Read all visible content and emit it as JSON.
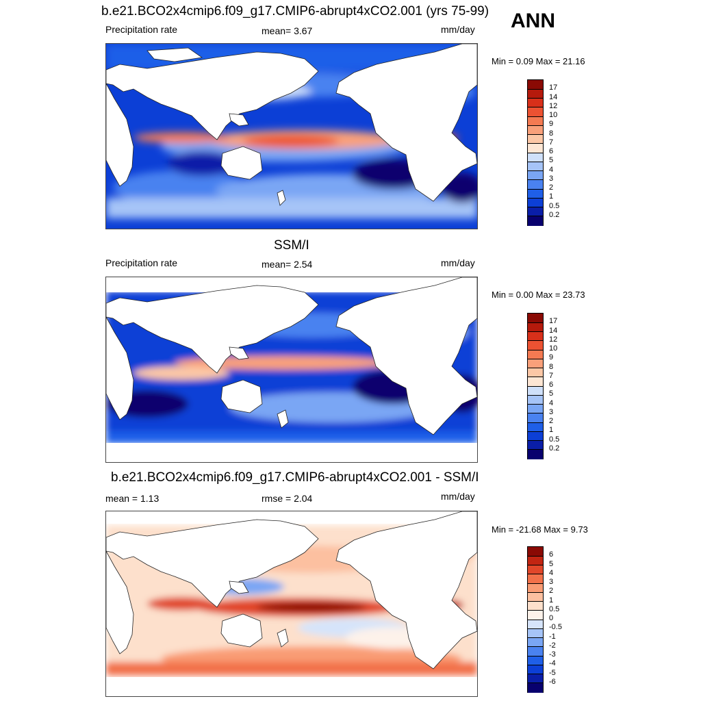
{
  "page": {
    "ann_label": "ANN"
  },
  "panels": [
    {
      "title": "b.e21.BCO2x4cmip6.f09_g17.CMIP6-abrupt4xCO2.001 (yrs 75-99)",
      "left_label": "Precipitation rate",
      "center_label": "mean=   3.67",
      "units": "mm/day",
      "minmax": "Min =   0.09 Max =  21.16"
    },
    {
      "title": "SSM/I",
      "left_label": "Precipitation rate",
      "center_label": "mean=   2.54",
      "units": "mm/day",
      "minmax": "Min =   0.00 Max =  23.73"
    },
    {
      "title": "b.e21.BCO2x4cmip6.f09_g17.CMIP6-abrupt4xCO2.001 - SSM/I",
      "left_label": "mean =   1.13",
      "center_label": "rmse =   2.04",
      "units": "mm/day",
      "minmax": "Min = -21.68 Max =   9.73"
    }
  ],
  "chart_data": [
    {
      "type": "heatmap",
      "title": "b.e21.BCO2x4cmip6.f09_g17.CMIP6-abrupt4xCO2.001 (yrs 75-99)",
      "variable": "Precipitation rate",
      "units": "mm/day",
      "mean": 3.67,
      "min": 0.09,
      "max": 21.16,
      "colorbar_levels": [
        "0.2",
        "0.5",
        "1",
        "2",
        "3",
        "4",
        "5",
        "6",
        "7",
        "8",
        "9",
        "10",
        "12",
        "14",
        "17"
      ],
      "colorbar_colors": [
        "#08006e",
        "#0a1ea8",
        "#0c3fd6",
        "#1f5fe8",
        "#4a82f0",
        "#7aa6f4",
        "#a6c4f7",
        "#cfe0fa",
        "#fde6d4",
        "#fcc7a6",
        "#f9a07a",
        "#f47a52",
        "#ec5232",
        "#d8301a",
        "#b51a0c",
        "#8a0a04"
      ]
    },
    {
      "type": "heatmap",
      "title": "SSM/I",
      "variable": "Precipitation rate",
      "units": "mm/day",
      "mean": 2.54,
      "min": 0.0,
      "max": 23.73,
      "colorbar_levels": [
        "0.2",
        "0.5",
        "1",
        "2",
        "3",
        "4",
        "5",
        "6",
        "7",
        "8",
        "9",
        "10",
        "12",
        "14",
        "17"
      ],
      "colorbar_colors": [
        "#08006e",
        "#0a1ea8",
        "#0c3fd6",
        "#1f5fe8",
        "#4a82f0",
        "#7aa6f4",
        "#a6c4f7",
        "#cfe0fa",
        "#fde6d4",
        "#fcc7a6",
        "#f9a07a",
        "#f47a52",
        "#ec5232",
        "#d8301a",
        "#b51a0c",
        "#8a0a04"
      ]
    },
    {
      "type": "heatmap",
      "title": "b.e21.BCO2x4cmip6.f09_g17.CMIP6-abrupt4xCO2.001 - SSM/I",
      "units": "mm/day",
      "mean": 1.13,
      "rmse": 2.04,
      "min": -21.68,
      "max": 9.73,
      "colorbar_levels": [
        "-6",
        "-5",
        "-4",
        "-3",
        "-2",
        "-1",
        "-0.5",
        "0",
        "0.5",
        "1",
        "2",
        "3",
        "4",
        "5",
        "6"
      ],
      "colorbar_colors": [
        "#08006e",
        "#0a1ea8",
        "#0c3fd6",
        "#1f5fe8",
        "#4a82f0",
        "#7aa6f4",
        "#a6c4f7",
        "#d6e4fa",
        "#fdf2ea",
        "#fde0cc",
        "#fcc0a0",
        "#f99c74",
        "#f2714a",
        "#e1472a",
        "#c22512",
        "#8a0a04"
      ]
    }
  ]
}
